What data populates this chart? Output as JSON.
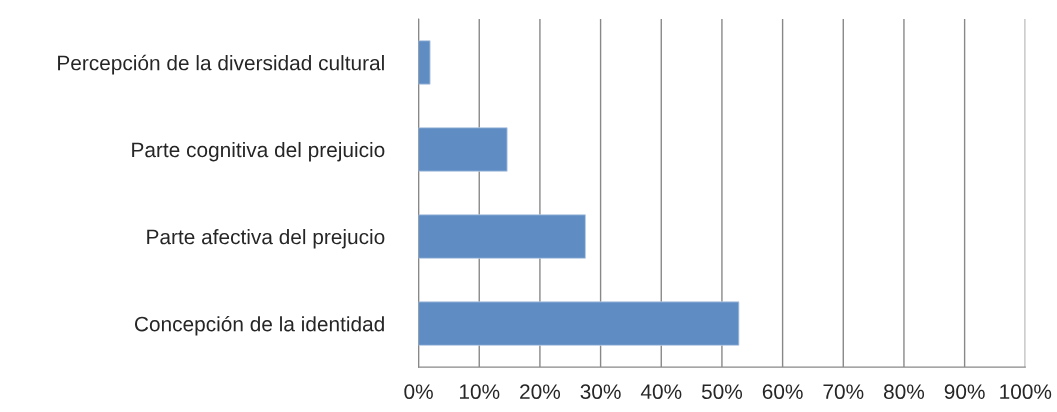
{
  "chart_data": {
    "type": "bar",
    "orientation": "horizontal",
    "categories": [
      "Percepción de la diversidad cultural",
      "Parte cognitiva del prejuicio",
      "Parte afectiva del prejucio",
      "Concepción de la identidad"
    ],
    "values": [
      1.9,
      14.6,
      27.5,
      52.8
    ],
    "color": "#5f8dc3",
    "xlim": [
      0,
      100
    ],
    "xticks": [
      {
        "value": 0,
        "label": "0%"
      },
      {
        "value": 10,
        "label": "10%"
      },
      {
        "value": 20,
        "label": "20%"
      },
      {
        "value": 30,
        "label": "30%"
      },
      {
        "value": 40,
        "label": "40%"
      },
      {
        "value": 50,
        "label": "50%"
      },
      {
        "value": 60,
        "label": "60%"
      },
      {
        "value": 70,
        "label": "70%"
      },
      {
        "value": 80,
        "label": "80%"
      },
      {
        "value": 90,
        "label": "90%"
      },
      {
        "value": 100,
        "label": "100%"
      }
    ],
    "grid": "x"
  }
}
